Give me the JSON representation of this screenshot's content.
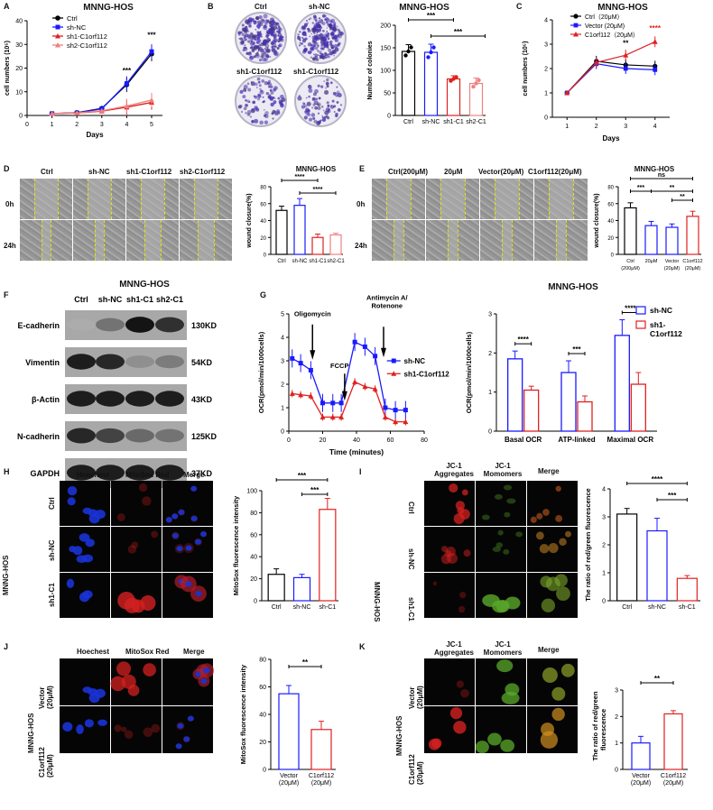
{
  "figure_title": "MNNG-HOS",
  "panels": {
    "A": {
      "letter": "A",
      "title": "MNNG-HOS",
      "xlabel": "Days",
      "ylabel": "cell numbers (10⁵)",
      "legend": [
        "Ctrl",
        "sh-NC",
        "sh1-C1orf112",
        "sh2-C1orf112"
      ],
      "sig": [
        "***",
        "***"
      ]
    },
    "B": {
      "letter": "B",
      "dish_labels": [
        "Ctrl",
        "sh-NC",
        "sh1-C1orf112",
        "sh1-C1orf112"
      ],
      "title": "MNNG-HOS",
      "ylabel": "Number of colonies",
      "categories": [
        "Ctrl",
        "sh-NC",
        "sh1-C1",
        "sh2-C1"
      ],
      "sig": [
        "***",
        "***"
      ]
    },
    "C": {
      "letter": "C",
      "title": "MNNG-HOS",
      "xlabel": "Days",
      "ylabel": "cell numbers (10⁵)",
      "legend": [
        "Ctrl（20μM）",
        "Vector (20μM)",
        "C1orf112（20μM）"
      ],
      "sig": [
        "**",
        "****"
      ]
    },
    "D": {
      "letter": "D",
      "col_labels": [
        "Ctrl",
        "sh-NC",
        "sh1-C1orf112",
        "sh2-C1orf112"
      ],
      "row_labels": [
        "0h",
        "24h"
      ],
      "title": "MNNG-HOS",
      "ylabel": "wound closure(%)",
      "categories": [
        "Ctrl",
        "sh-NC",
        "sh1-C1",
        "sh2-C1"
      ],
      "sig": [
        "****",
        "****"
      ]
    },
    "E": {
      "letter": "E",
      "col_labels": [
        "Ctrl(200μM)",
        "20μM",
        "Vector(20μM)",
        "C1orf112(20μM)"
      ],
      "row_labels": [
        "0h",
        "24h"
      ],
      "title": "MNNG-HOS",
      "ylabel": "wound closure(%)",
      "categories": [
        "Ctrl (200μM)",
        "20μM",
        "Vector (20μM)",
        "C1orf112 (20μM)"
      ],
      "sig": [
        "ns",
        "***",
        "**",
        "**"
      ]
    },
    "F": {
      "letter": "F",
      "title": "MNNG-HOS",
      "lanes": [
        "Ctrl",
        "sh-NC",
        "sh1-C1",
        "sh2-C1"
      ],
      "rows": [
        {
          "protein": "E-cadherin",
          "kd": "130KD",
          "intensity": [
            0.15,
            0.45,
            0.95,
            0.8
          ]
        },
        {
          "protein": "Vimentin",
          "kd": "54KD",
          "intensity": [
            0.9,
            0.85,
            0.3,
            0.4
          ]
        },
        {
          "protein": "β-Actin",
          "kd": "43KD",
          "intensity": [
            0.9,
            0.9,
            0.9,
            0.9
          ]
        },
        {
          "protein": "N-cadherin",
          "kd": "125KD",
          "intensity": [
            0.85,
            0.7,
            0.5,
            0.45
          ]
        },
        {
          "protein": "GAPDH",
          "kd": "37KD",
          "intensity": [
            0.9,
            0.9,
            0.9,
            0.9
          ]
        }
      ]
    },
    "G": {
      "letter": "G",
      "xlabel": "Time (minutes)",
      "ylabel": "OCR(pmol/min/1000cells)",
      "annotations": [
        "Oligomycin",
        "FCCP",
        "Antimycin A/ Rotenone"
      ],
      "legend": [
        "sh-NC",
        "sh1-C1orf112"
      ],
      "bar_title": "MNNG-HOS",
      "bar_ylabel": "OCR(pmol/min/1000cells)",
      "bar_categories": [
        "Basal OCR",
        "ATP-linked",
        "Maximal OCR"
      ],
      "bar_legend": [
        "sh-NC",
        "sh1- C1orf112"
      ],
      "bar_sig": [
        "****",
        "***",
        "****"
      ]
    },
    "H": {
      "letter": "H",
      "col_labels": [
        "Hoechest",
        "MitoSox Red",
        "Merge"
      ],
      "cell_line": "MNNG-HOS",
      "row_labels": [
        "Ctrl",
        "sh-NC",
        "sh1-C1"
      ],
      "ylabel": "MitoSox fluorescence intensity",
      "categories": [
        "Ctrl",
        "sh-NC",
        "sh-C1"
      ],
      "sig": [
        "***",
        "***"
      ]
    },
    "I": {
      "letter": "I",
      "col_labels": [
        "JC-1 Aggregates",
        "JC-1 Momomers",
        "Merge"
      ],
      "cell_line": "MNNG-HOS",
      "row_labels": [
        "Ctrl",
        "sh-NC",
        "sh1-C1"
      ],
      "ylabel": "The ratio of red/green fluorescence",
      "categories": [
        "Ctrl",
        "sh-NC",
        "sh-C1"
      ],
      "sig": [
        "****",
        "***"
      ]
    },
    "J": {
      "letter": "J",
      "col_labels": [
        "Hoechest",
        "MitoSox Red",
        "Merge"
      ],
      "cell_line": "MNNG-HOS",
      "row_labels": [
        "Vector (20μM)",
        "C1orf112 (20μM)"
      ],
      "ylabel": "MitoSox fluorescence intensity",
      "categories": [
        "Vector (20μM)",
        "C1orf112 (20μM)"
      ],
      "sig": [
        "**"
      ]
    },
    "K": {
      "letter": "K",
      "col_labels": [
        "JC-1 Aggregates",
        "JC-1 Momomers",
        "Merge"
      ],
      "cell_line": "MNNG-HOS",
      "row_labels": [
        "Vector (20μM)",
        "C1orf112 (20μM)"
      ],
      "ylabel": "The ratio of red/green fluorescence",
      "categories": [
        "Vector (20μM)",
        "C1orf112 (20μM)"
      ],
      "sig": [
        "**"
      ]
    }
  },
  "colors": {
    "ctrl": "#000000",
    "shnc": "#1a1aff",
    "sh1": "#e02020",
    "sh2": "#f08080",
    "bg_micro": "#050505"
  },
  "chart_data": [
    {
      "id": "A",
      "type": "line",
      "x": [
        1,
        2,
        3,
        4,
        5
      ],
      "xlim": [
        0,
        5
      ],
      "ylim": [
        0,
        40
      ],
      "series": [
        {
          "name": "Ctrl",
          "values": [
            0.8,
            1.2,
            3,
            13,
            26
          ]
        },
        {
          "name": "sh-NC",
          "values": [
            0.8,
            1.1,
            2.8,
            13.5,
            27
          ]
        },
        {
          "name": "sh1-C1orf112",
          "values": [
            0.8,
            1,
            1.8,
            3.5,
            5.5
          ]
        },
        {
          "name": "sh2-C1orf112",
          "values": [
            0.8,
            1.1,
            2,
            4,
            6.5
          ]
        }
      ]
    },
    {
      "id": "B",
      "type": "bar",
      "categories": [
        "Ctrl",
        "sh-NC",
        "sh1-C1",
        "sh2-C1"
      ],
      "values": [
        142,
        140,
        81,
        71
      ],
      "errors": [
        15,
        18,
        7,
        12
      ],
      "ylim": [
        0,
        200
      ]
    },
    {
      "id": "C",
      "type": "line",
      "x": [
        1,
        2,
        3,
        4
      ],
      "ylim": [
        0,
        4
      ],
      "series": [
        {
          "name": "Ctrl（20μM）",
          "values": [
            1,
            2.3,
            2.15,
            2.1
          ]
        },
        {
          "name": "Vector (20μM)",
          "values": [
            1,
            2.2,
            2.0,
            1.95
          ]
        },
        {
          "name": "C1orf112（20μM）",
          "values": [
            1,
            2.25,
            2.55,
            3.1
          ]
        }
      ]
    },
    {
      "id": "D",
      "type": "bar",
      "categories": [
        "Ctrl",
        "sh-NC",
        "sh1-C1",
        "sh2-C1"
      ],
      "values": [
        52,
        58,
        20,
        23
      ],
      "errors": [
        5,
        8,
        4,
        2
      ],
      "ylim": [
        0,
        80
      ]
    },
    {
      "id": "E",
      "type": "bar",
      "categories": [
        "Ctrl (200μM)",
        "20μM",
        "Vector (20μM)",
        "C1orf112 (20μM)"
      ],
      "values": [
        55,
        34,
        32,
        45
      ],
      "errors": [
        6,
        5,
        4,
        6
      ],
      "ylim": [
        0,
        80
      ]
    },
    {
      "id": "G-line",
      "type": "line",
      "xlabel": "Time (minutes)",
      "xlim": [
        0,
        80
      ],
      "ylim": [
        0,
        5
      ],
      "series": [
        {
          "name": "sh-NC",
          "x": [
            2,
            7,
            13,
            20,
            26,
            31,
            39,
            45,
            51,
            57,
            63,
            69
          ],
          "values": [
            3.1,
            2.9,
            2.6,
            1.2,
            1.2,
            1.2,
            3.8,
            3.6,
            3.2,
            1.0,
            0.9,
            0.9
          ]
        },
        {
          "name": "sh1-C1orf112",
          "x": [
            2,
            7,
            13,
            20,
            26,
            31,
            39,
            45,
            51,
            57,
            63,
            69
          ],
          "values": [
            1.6,
            1.55,
            1.5,
            0.6,
            0.6,
            0.6,
            2.1,
            1.9,
            1.8,
            0.6,
            0.4,
            0.4
          ]
        }
      ]
    },
    {
      "id": "G-bar",
      "type": "bar",
      "categories": [
        "Basal OCR",
        "ATP-linked",
        "Maximal OCR"
      ],
      "ylim": [
        0,
        3
      ],
      "series": [
        {
          "name": "sh-NC",
          "values": [
            1.85,
            1.5,
            2.45
          ],
          "errors": [
            0.2,
            0.3,
            0.4
          ]
        },
        {
          "name": "sh1- C1orf112",
          "values": [
            1.05,
            0.75,
            1.2
          ],
          "errors": [
            0.1,
            0.15,
            0.3
          ]
        }
      ]
    },
    {
      "id": "H",
      "type": "bar",
      "categories": [
        "Ctrl",
        "sh-NC",
        "sh-C1"
      ],
      "values": [
        24,
        21,
        83
      ],
      "errors": [
        5,
        3,
        10
      ],
      "ylim": [
        0,
        100
      ]
    },
    {
      "id": "I",
      "type": "bar",
      "categories": [
        "Ctrl",
        "sh-NC",
        "sh-C1"
      ],
      "values": [
        3.1,
        2.5,
        0.8
      ],
      "errors": [
        0.2,
        0.45,
        0.1
      ],
      "ylim": [
        0,
        4
      ]
    },
    {
      "id": "J",
      "type": "bar",
      "categories": [
        "Vector (20μM)",
        "C1orf112 (20μM)"
      ],
      "values": [
        55,
        29
      ],
      "errors": [
        6,
        6
      ],
      "ylim": [
        0,
        80
      ]
    },
    {
      "id": "K",
      "type": "bar",
      "categories": [
        "Vector (20μM)",
        "C1orf112 (20μM)"
      ],
      "values": [
        1.0,
        2.1
      ],
      "errors": [
        0.25,
        0.12
      ],
      "ylim": [
        0,
        3
      ]
    }
  ]
}
